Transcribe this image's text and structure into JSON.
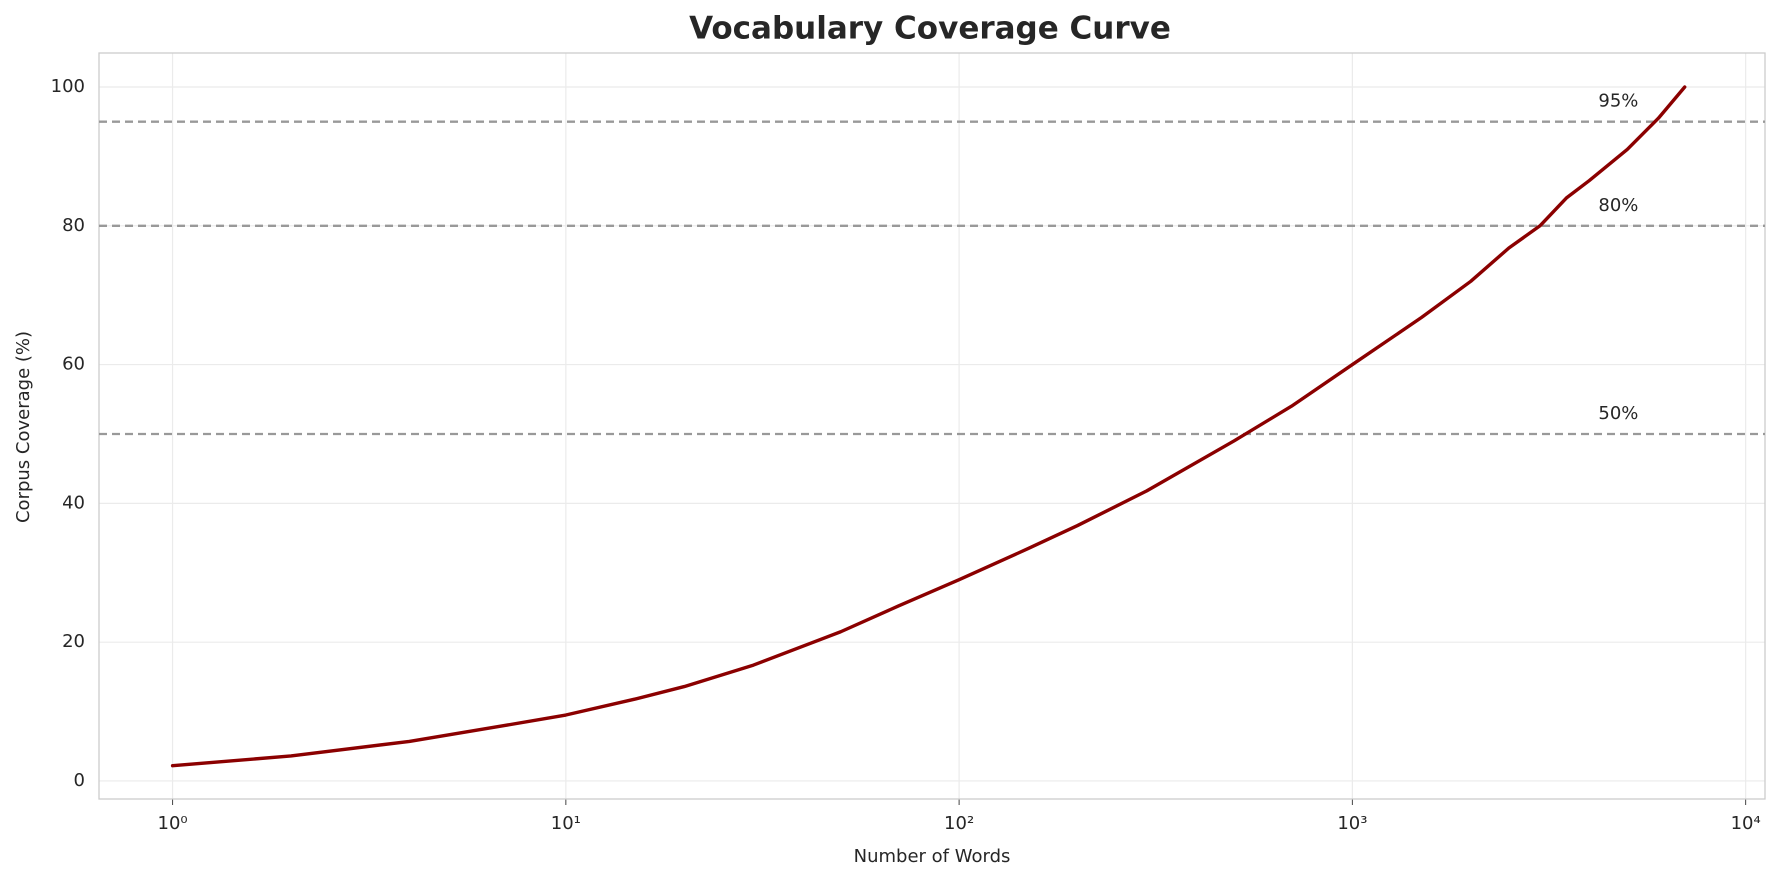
{
  "chart_data": {
    "type": "line",
    "title": "Vocabulary Coverage Curve",
    "x_label": "Number of Words",
    "y_label": "Corpus Coverage (%)",
    "x": [
      1,
      2,
      4,
      7,
      10,
      15,
      20,
      30,
      50,
      70,
      100,
      150,
      200,
      300,
      500,
      700,
      1000,
      1500,
      2000,
      2500,
      3000,
      3500,
      4000,
      5000,
      6000,
      7000
    ],
    "values": [
      2.2,
      3.6,
      5.7,
      8.0,
      9.5,
      11.8,
      13.6,
      16.7,
      21.5,
      25.2,
      29.0,
      33.5,
      36.8,
      41.8,
      49.0,
      54.0,
      60.0,
      66.8,
      72.0,
      76.8,
      80.0,
      84.0,
      86.5,
      91.0,
      95.5,
      100.0
    ],
    "color": "#8b0000",
    "x_log": true,
    "xlim": [
      0.65,
      11200
    ],
    "ylim": [
      -2.6,
      104.9
    ],
    "xticks": [
      {
        "value": 1,
        "label": "10⁰"
      },
      {
        "value": 10,
        "label": "10¹"
      },
      {
        "value": 100,
        "label": "10²"
      },
      {
        "value": 1000,
        "label": "10³"
      },
      {
        "value": 10000,
        "label": "10⁴"
      }
    ],
    "yticks": [
      0,
      20,
      40,
      60,
      80,
      100
    ],
    "grid": true,
    "hlines": [
      {
        "value": 50,
        "label": "50%"
      },
      {
        "value": 80,
        "label": "80%"
      },
      {
        "value": 95,
        "label": "95%"
      }
    ],
    "hline_color": "#999999"
  }
}
